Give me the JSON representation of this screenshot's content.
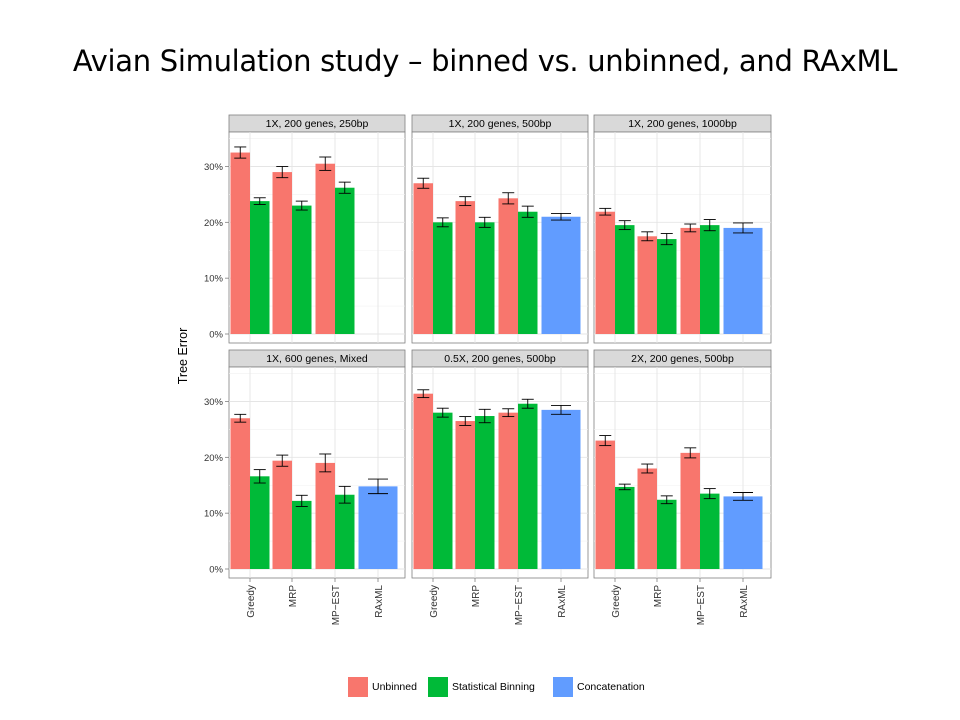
{
  "slide": {
    "title": "Avian Simulation study – binned vs. unbinned, and RAxML"
  },
  "chart_data": {
    "type": "bar",
    "ylabel": "Tree Error",
    "xlabel": "",
    "ylim": [
      0,
      0.36
    ],
    "y_ticks": [
      0,
      0.1,
      0.2,
      0.3
    ],
    "y_tick_labels": [
      "0%",
      "10%",
      "20%",
      "30%"
    ],
    "categories": [
      "Greedy",
      "MRP",
      "MP−EST",
      "RAxML"
    ],
    "grid": true,
    "legend": "bottom",
    "series": [
      {
        "name": "Unbinned",
        "color": "#F8766D"
      },
      {
        "name": "Statistical Binning",
        "color": "#00BA38"
      },
      {
        "name": "Concatenation",
        "color": "#619CFF"
      }
    ],
    "panels": [
      {
        "title": "1X, 200 genes, 250bp",
        "bars": [
          {
            "category": "Greedy",
            "series": "Unbinned",
            "value": 0.325,
            "err": 0.01
          },
          {
            "category": "Greedy",
            "series": "Statistical Binning",
            "value": 0.238,
            "err": 0.006
          },
          {
            "category": "MRP",
            "series": "Unbinned",
            "value": 0.29,
            "err": 0.01
          },
          {
            "category": "MRP",
            "series": "Statistical Binning",
            "value": 0.23,
            "err": 0.008
          },
          {
            "category": "MP−EST",
            "series": "Unbinned",
            "value": 0.305,
            "err": 0.012
          },
          {
            "category": "MP−EST",
            "series": "Statistical Binning",
            "value": 0.262,
            "err": 0.01
          }
        ]
      },
      {
        "title": "1X, 200 genes, 500bp",
        "bars": [
          {
            "category": "Greedy",
            "series": "Unbinned",
            "value": 0.27,
            "err": 0.009
          },
          {
            "category": "Greedy",
            "series": "Statistical Binning",
            "value": 0.2,
            "err": 0.008
          },
          {
            "category": "MRP",
            "series": "Unbinned",
            "value": 0.238,
            "err": 0.008
          },
          {
            "category": "MRP",
            "series": "Statistical Binning",
            "value": 0.2,
            "err": 0.009
          },
          {
            "category": "MP−EST",
            "series": "Unbinned",
            "value": 0.243,
            "err": 0.01
          },
          {
            "category": "MP−EST",
            "series": "Statistical Binning",
            "value": 0.219,
            "err": 0.01
          },
          {
            "category": "RAxML",
            "series": "Concatenation",
            "value": 0.21,
            "err": 0.006
          }
        ]
      },
      {
        "title": "1X, 200 genes, 1000bp",
        "bars": [
          {
            "category": "Greedy",
            "series": "Unbinned",
            "value": 0.219,
            "err": 0.006
          },
          {
            "category": "Greedy",
            "series": "Statistical Binning",
            "value": 0.195,
            "err": 0.008
          },
          {
            "category": "MRP",
            "series": "Unbinned",
            "value": 0.175,
            "err": 0.008
          },
          {
            "category": "MRP",
            "series": "Statistical Binning",
            "value": 0.17,
            "err": 0.01
          },
          {
            "category": "MP−EST",
            "series": "Unbinned",
            "value": 0.19,
            "err": 0.007
          },
          {
            "category": "MP−EST",
            "series": "Statistical Binning",
            "value": 0.195,
            "err": 0.01
          },
          {
            "category": "RAxML",
            "series": "Concatenation",
            "value": 0.19,
            "err": 0.009
          }
        ]
      },
      {
        "title": "1X, 600 genes, Mixed",
        "bars": [
          {
            "category": "Greedy",
            "series": "Unbinned",
            "value": 0.27,
            "err": 0.007
          },
          {
            "category": "Greedy",
            "series": "Statistical Binning",
            "value": 0.166,
            "err": 0.012
          },
          {
            "category": "MRP",
            "series": "Unbinned",
            "value": 0.194,
            "err": 0.01
          },
          {
            "category": "MRP",
            "series": "Statistical Binning",
            "value": 0.122,
            "err": 0.01
          },
          {
            "category": "MP−EST",
            "series": "Unbinned",
            "value": 0.19,
            "err": 0.016
          },
          {
            "category": "MP−EST",
            "series": "Statistical Binning",
            "value": 0.133,
            "err": 0.015
          },
          {
            "category": "RAxML",
            "series": "Concatenation",
            "value": 0.148,
            "err": 0.013
          }
        ]
      },
      {
        "title": "0.5X, 200 genes, 500bp",
        "bars": [
          {
            "category": "Greedy",
            "series": "Unbinned",
            "value": 0.314,
            "err": 0.007
          },
          {
            "category": "Greedy",
            "series": "Statistical Binning",
            "value": 0.28,
            "err": 0.008
          },
          {
            "category": "MRP",
            "series": "Unbinned",
            "value": 0.265,
            "err": 0.008
          },
          {
            "category": "MRP",
            "series": "Statistical Binning",
            "value": 0.274,
            "err": 0.012
          },
          {
            "category": "MP−EST",
            "series": "Unbinned",
            "value": 0.28,
            "err": 0.007
          },
          {
            "category": "MP−EST",
            "series": "Statistical Binning",
            "value": 0.296,
            "err": 0.008
          },
          {
            "category": "RAxML",
            "series": "Concatenation",
            "value": 0.285,
            "err": 0.008
          }
        ]
      },
      {
        "title": "2X, 200 genes, 500bp",
        "bars": [
          {
            "category": "Greedy",
            "series": "Unbinned",
            "value": 0.23,
            "err": 0.009
          },
          {
            "category": "Greedy",
            "series": "Statistical Binning",
            "value": 0.147,
            "err": 0.005
          },
          {
            "category": "MRP",
            "series": "Unbinned",
            "value": 0.18,
            "err": 0.008
          },
          {
            "category": "MRP",
            "series": "Statistical Binning",
            "value": 0.124,
            "err": 0.007
          },
          {
            "category": "MP−EST",
            "series": "Unbinned",
            "value": 0.208,
            "err": 0.009
          },
          {
            "category": "MP−EST",
            "series": "Statistical Binning",
            "value": 0.135,
            "err": 0.009
          },
          {
            "category": "RAxML",
            "series": "Concatenation",
            "value": 0.13,
            "err": 0.007
          }
        ]
      }
    ]
  }
}
